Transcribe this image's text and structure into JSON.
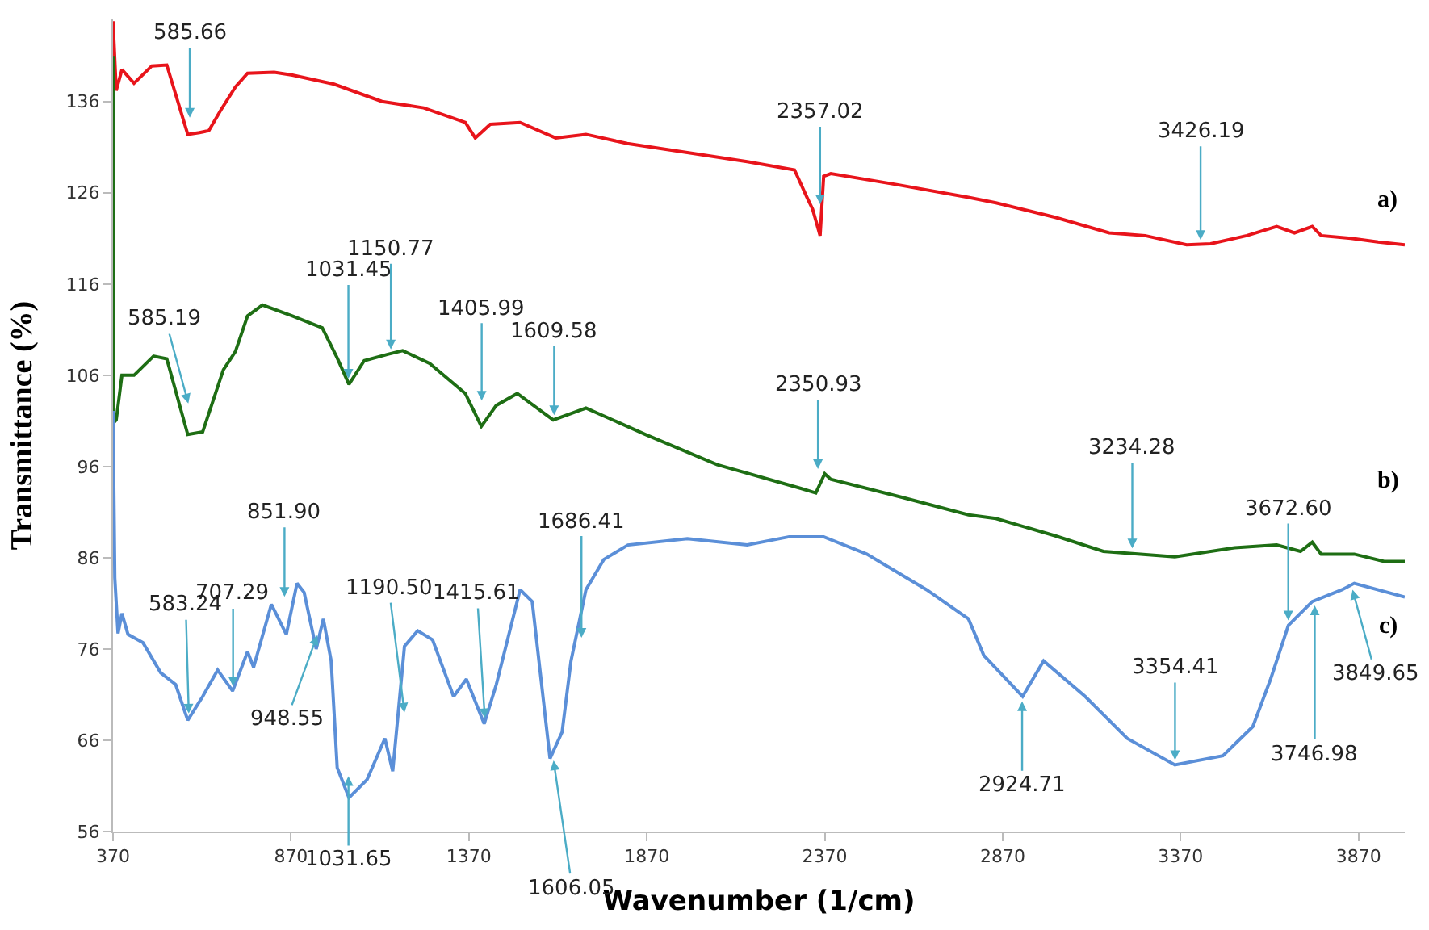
{
  "chart_data": {
    "type": "line",
    "xlabel": "Wavenumber (1/cm)",
    "ylabel": "Transmittance (%)",
    "xlim": [
      370,
      4000
    ],
    "xticks": [
      370,
      870,
      1370,
      1870,
      2370,
      2870,
      3370,
      3870
    ],
    "ylim": [
      56,
      145
    ],
    "yticks": [
      56,
      66,
      76,
      86,
      96,
      106,
      116,
      126,
      136
    ],
    "grid": false,
    "legend": false,
    "marker": "none",
    "line_style": "solid",
    "series": [
      {
        "name": "a)",
        "color": "#e8141b",
        "x": [
          370,
          379,
          395,
          429,
          479,
          521,
          580,
          613,
          639,
          672,
          714,
          748,
          823,
          874,
          991,
          1126,
          1243,
          1360,
          1388,
          1430,
          1514,
          1614,
          1699,
          1815,
          1984,
          2152,
          2285,
          2320,
          2336,
          2357,
          2367,
          2387,
          2572,
          2774,
          2851,
          3018,
          3169,
          3270,
          3387,
          3454,
          3556,
          3640,
          3690,
          3740,
          3765,
          3849,
          3925,
          4000
        ],
        "values": [
          144.8,
          137.2,
          139.5,
          138,
          139.9,
          140,
          132.4,
          132.6,
          132.8,
          135,
          137.6,
          139.1,
          139.2,
          138.9,
          137.9,
          136,
          135.3,
          133.7,
          132,
          133.5,
          133.7,
          132,
          132.4,
          131.4,
          130.4,
          129.4,
          128.5,
          125.5,
          124.2,
          121.3,
          127.8,
          128.1,
          126.9,
          125.5,
          124.9,
          123.3,
          121.6,
          121.3,
          120.3,
          120.4,
          121.3,
          122.3,
          121.6,
          122.3,
          121.3,
          121,
          120.6,
          120.3
        ]
      },
      {
        "name": "b)",
        "color": "#1e6e14",
        "x": [
          370,
          372,
          379,
          395,
          429,
          484,
          521,
          580,
          622,
          680,
          714,
          748,
          790,
          874,
          958,
          1000,
          1033,
          1076,
          1142,
          1184,
          1260,
          1360,
          1405,
          1447,
          1506,
          1607,
          1699,
          1867,
          2068,
          2303,
          2345,
          2370,
          2387,
          2589,
          2774,
          2851,
          3018,
          3153,
          3354,
          3522,
          3640,
          3707,
          3740,
          3765,
          3858,
          3942,
          4000
        ],
        "values": [
          141,
          100.8,
          101.1,
          106,
          106,
          108.1,
          107.8,
          99.5,
          99.8,
          106.6,
          108.6,
          112.5,
          113.7,
          112.5,
          111.2,
          107.9,
          105,
          107.6,
          108.3,
          108.7,
          107.3,
          104,
          100.4,
          102.7,
          104,
          101.1,
          102.4,
          99.5,
          96.2,
          93.6,
          93.1,
          95.2,
          94.6,
          92.6,
          90.7,
          90.3,
          88.4,
          86.7,
          86.1,
          87.1,
          87.4,
          86.7,
          87.7,
          86.4,
          86.4,
          85.6,
          85.6
        ]
      },
      {
        "name": "c)",
        "color": "#5b8fd8",
        "x": [
          370,
          375,
          384,
          395,
          412,
          454,
          504,
          546,
          580,
          622,
          664,
          706,
          748,
          765,
          815,
          857,
          887,
          907,
          941,
          961,
          983,
          1000,
          1033,
          1084,
          1134,
          1156,
          1189,
          1226,
          1268,
          1327,
          1363,
          1413,
          1447,
          1514,
          1548,
          1598,
          1632,
          1657,
          1699,
          1749,
          1817,
          1984,
          2152,
          2270,
          2367,
          2488,
          2656,
          2774,
          2817,
          2926,
          2985,
          3102,
          3220,
          3354,
          3489,
          3573,
          3623,
          3673,
          3740,
          3824,
          3858,
          4000
        ],
        "values": [
          102.1,
          83.8,
          77.7,
          79.9,
          77.6,
          76.7,
          73.4,
          72.1,
          68.2,
          70.8,
          73.7,
          71.4,
          75.7,
          74,
          80.9,
          77.6,
          83.2,
          82.2,
          76,
          79.3,
          74.7,
          63,
          59.7,
          61.7,
          66.2,
          62.6,
          76.3,
          78,
          77,
          70.8,
          72.7,
          67.8,
          72.1,
          82.5,
          81.2,
          64,
          66.9,
          74.7,
          82.5,
          85.8,
          87.4,
          88.1,
          87.4,
          88.3,
          88.3,
          86.4,
          82.5,
          79.3,
          75.3,
          70.8,
          74.7,
          70.8,
          66.2,
          63.3,
          64.3,
          67.5,
          72.7,
          78.6,
          81.2,
          82.5,
          83.2,
          81.7
        ]
      }
    ],
    "annotations": [
      {
        "text": "585.66",
        "x": 585.66,
        "y": 133.7
      },
      {
        "text": "2357.02",
        "x": 2357.02,
        "y": 124.2
      },
      {
        "text": "3426.19",
        "x": 3426.19,
        "y": 120.3
      },
      {
        "text": "585.19",
        "x": 585.19,
        "y": 102.4
      },
      {
        "text": "1031.45",
        "x": 1031.45,
        "y": 105.1
      },
      {
        "text": "1150.77",
        "x": 1150.77,
        "y": 108.3
      },
      {
        "text": "1405.99",
        "x": 1405.99,
        "y": 102.7
      },
      {
        "text": "1609.58",
        "x": 1609.58,
        "y": 101.1
      },
      {
        "text": "2350.93",
        "x": 2350.93,
        "y": 95.2
      },
      {
        "text": "3234.28",
        "x": 3234.28,
        "y": 86.5
      },
      {
        "text": "583.24",
        "x": 583.24,
        "y": 68.4
      },
      {
        "text": "707.29",
        "x": 707.29,
        "y": 71.4
      },
      {
        "text": "851.90",
        "x": 851.9,
        "y": 81.2
      },
      {
        "text": "948.55",
        "x": 948.55,
        "y": 78
      },
      {
        "text": "1031.65",
        "x": 1031.65,
        "y": 62.6
      },
      {
        "text": "1190.50",
        "x": 1190.5,
        "y": 68.5
      },
      {
        "text": "1415.61",
        "x": 1415.61,
        "y": 67.9
      },
      {
        "text": "1686.41",
        "x": 1686.41,
        "y": 76.7
      },
      {
        "text": "1606.05",
        "x": 1606.05,
        "y": 64.3
      },
      {
        "text": "2924.71",
        "x": 2924.71,
        "y": 70.8
      },
      {
        "text": "3354.41",
        "x": 3354.41,
        "y": 63.3
      },
      {
        "text": "3672.60",
        "x": 3672.6,
        "y": 78.6
      },
      {
        "text": "3746.98",
        "x": 3746.98,
        "y": 81.3
      },
      {
        "text": "3849.65",
        "x": 3849.65,
        "y": 83.0
      }
    ]
  }
}
